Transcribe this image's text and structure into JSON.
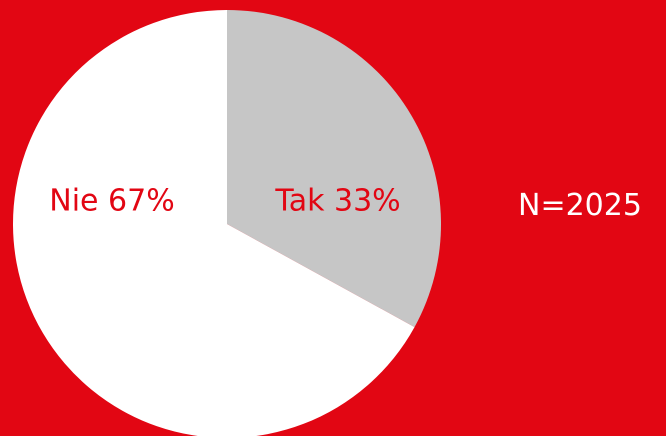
{
  "colors": {
    "background": "#e20613",
    "slice_tak": "#c6c6c6",
    "slice_nie": "#ffffff",
    "label_text": "#e20613",
    "n_text": "#ffffff"
  },
  "chart_data": {
    "type": "pie",
    "title": "",
    "slices": [
      {
        "label": "Tak 33%",
        "value": 33,
        "color": "#c6c6c6"
      },
      {
        "label": "Nie 67%",
        "value": 67,
        "color": "#ffffff"
      }
    ],
    "start_angle_deg": 0,
    "direction": "clockwise",
    "legend": "none",
    "annotation": "N=2025"
  }
}
